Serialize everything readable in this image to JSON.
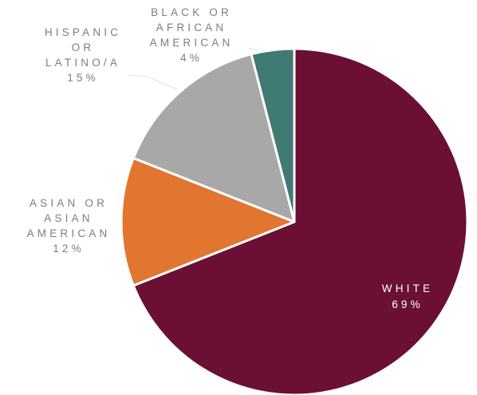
{
  "chart_data": {
    "type": "pie",
    "title": "",
    "slices": [
      {
        "label_lines": [
          "WHITE"
        ],
        "value": 69,
        "value_label": "69%",
        "color": "#6b0f35"
      },
      {
        "label_lines": [
          "ASIAN OR",
          "ASIAN",
          "AMERICAN"
        ],
        "value": 12,
        "value_label": "12%",
        "color": "#e07630"
      },
      {
        "label_lines": [
          "HISPANIC",
          "OR",
          "LATINO/A"
        ],
        "value": 15,
        "value_label": "15%",
        "color": "#a8a8a8"
      },
      {
        "label_lines": [
          "BLACK OR",
          "AFRICAN",
          "AMERICAN"
        ],
        "value": 4,
        "value_label": "4%",
        "color": "#3f7a73"
      }
    ],
    "start_angle": "12 o'clock",
    "direction": "clockwise",
    "legend": "none",
    "label_color": "#7d7d7d",
    "leader_line_color": "#e0e0e0"
  }
}
